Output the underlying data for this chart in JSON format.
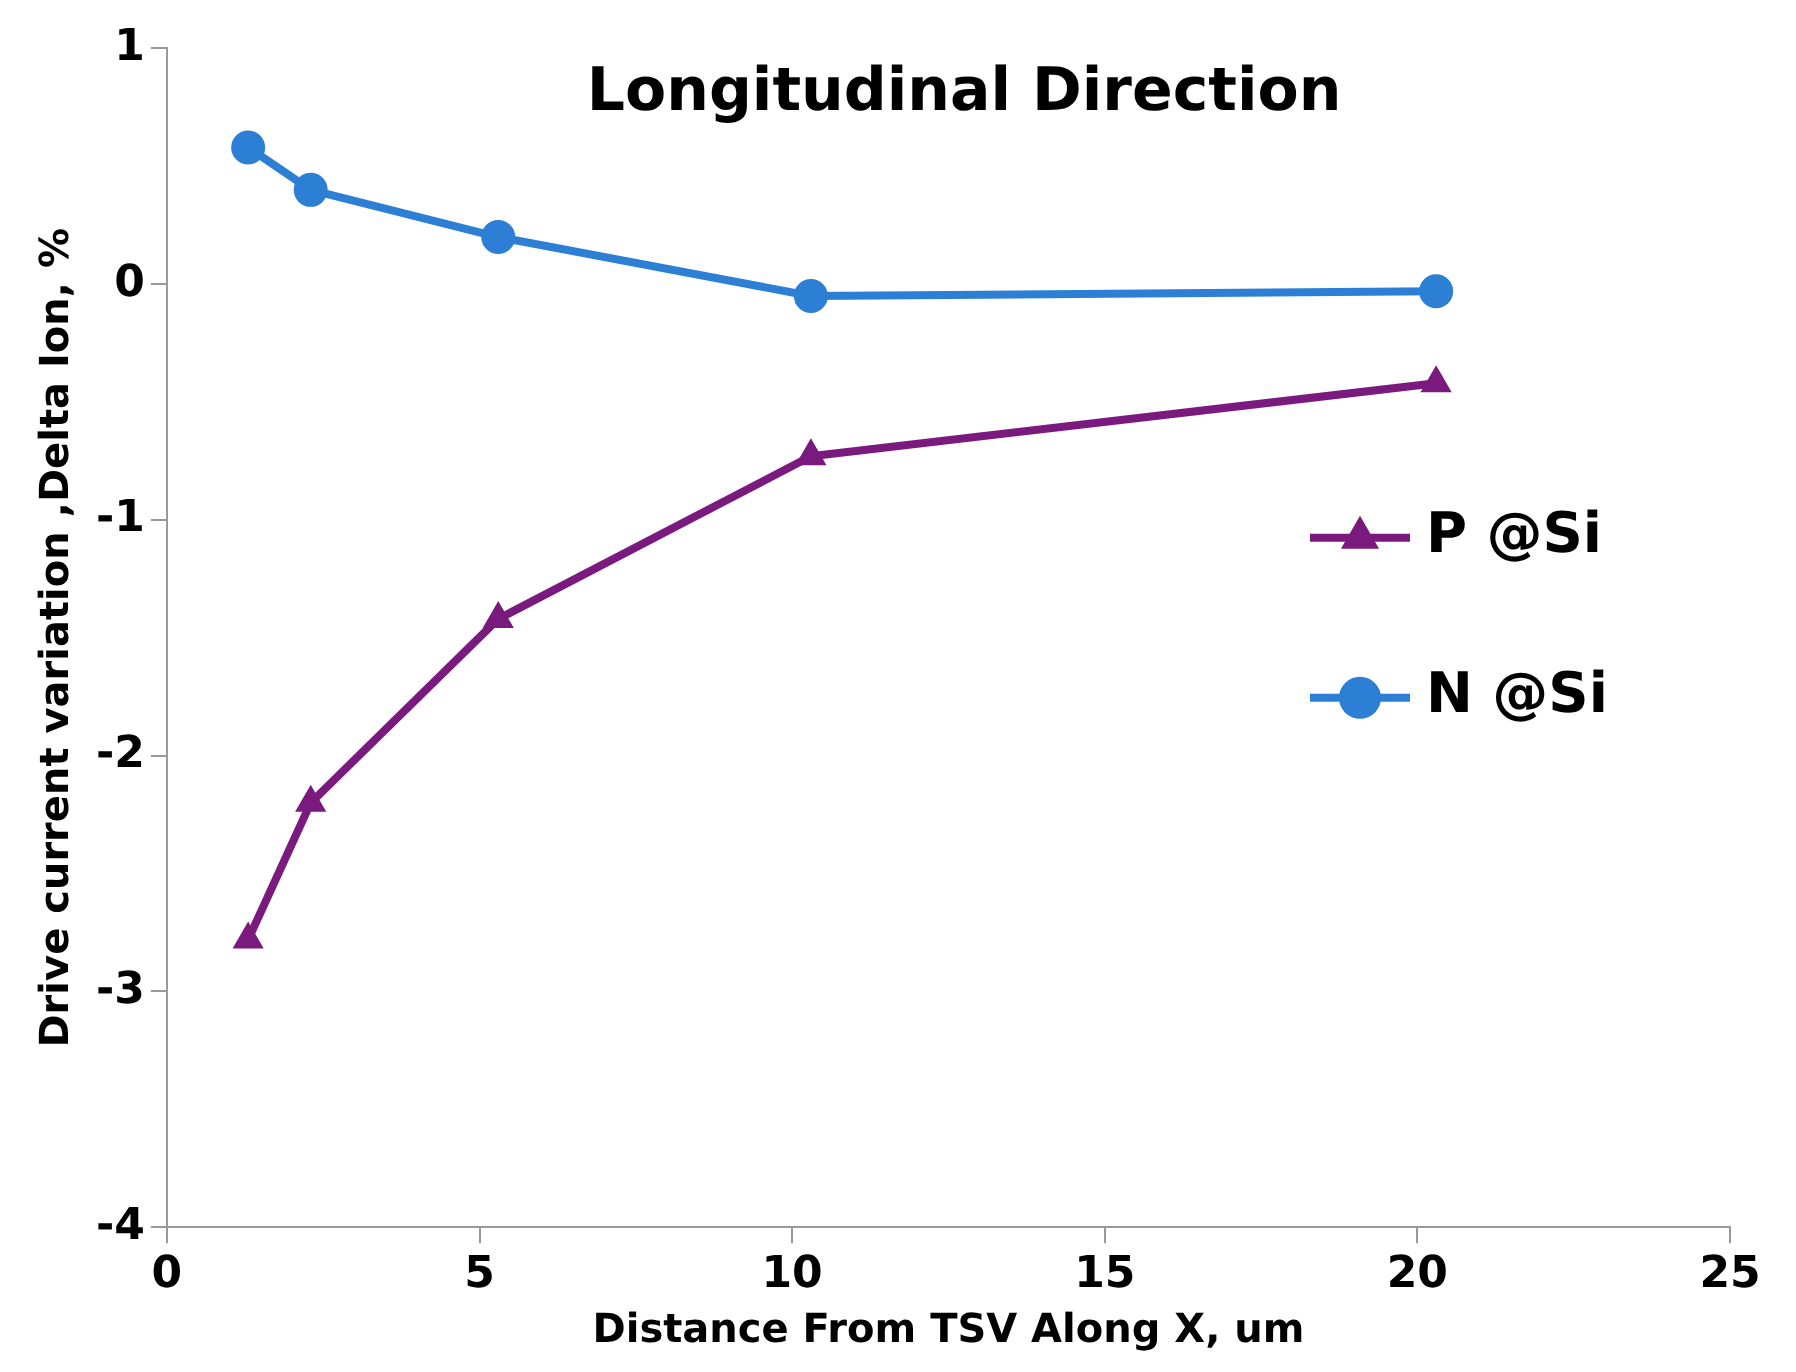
{
  "chart_data": {
    "type": "line",
    "title": "Longitudinal Direction",
    "xlabel": "Distance From TSV Along X, um",
    "ylabel": "Drive current variation ,Delta Ion, %",
    "xlim": [
      0,
      25
    ],
    "xticks": [
      0,
      5,
      10,
      15,
      20,
      25
    ],
    "ylim": [
      -4,
      1
    ],
    "yticks": [
      -4,
      -3,
      -2,
      -1,
      0,
      1
    ],
    "grid": false,
    "legend": "right",
    "series": [
      {
        "name": "P @Si",
        "color": "#7b1a7e",
        "marker": "triangle",
        "x": [
          1.3,
          2.3,
          5.3,
          10.3,
          20.3
        ],
        "values": [
          -2.78,
          -2.2,
          -1.42,
          -0.73,
          -0.42
        ]
      },
      {
        "name": "N @Si",
        "color": "#2c7fd4",
        "marker": "circle",
        "x": [
          1.3,
          2.3,
          5.3,
          10.3,
          20.3
        ],
        "values": [
          0.58,
          0.4,
          0.2,
          -0.05,
          -0.03
        ]
      }
    ]
  }
}
